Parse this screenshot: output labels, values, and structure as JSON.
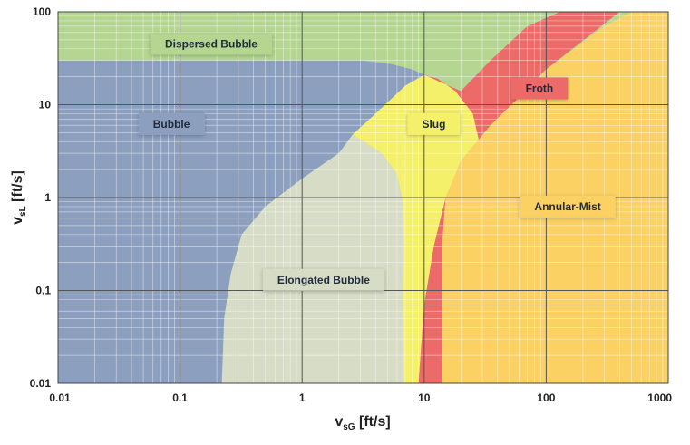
{
  "chart_data": {
    "type": "area",
    "xscale": "log",
    "yscale": "log",
    "xlim": [
      0.01,
      1000
    ],
    "ylim": [
      0.01,
      100
    ],
    "xticks": [
      "0.01",
      "0.1",
      "1",
      "10",
      "100",
      "1000"
    ],
    "yticks": [
      "0.01",
      "0.1",
      "1",
      "10",
      "100"
    ],
    "xlabel": {
      "main": "v",
      "sub": "sG",
      "unit": " [ft/s]"
    },
    "ylabel": {
      "main": "v",
      "sub": "sL",
      "unit": " [ft/s]"
    },
    "grid": true,
    "regions": [
      {
        "name": "Dispersed Bubble",
        "color": "#b4d690",
        "label_at": [
          0.18,
          45
        ],
        "polygon": [
          [
            0.01,
            100
          ],
          [
            1000,
            100
          ],
          [
            1000,
            0.01
          ],
          [
            0.01,
            0.01
          ]
        ]
      },
      {
        "name": "Bubble",
        "color": "#8c9fbf",
        "label_at": [
          0.085,
          6.2
        ],
        "polygon": [
          [
            0.01,
            30
          ],
          [
            3,
            30
          ],
          [
            5,
            28
          ],
          [
            8,
            24
          ],
          [
            10,
            21
          ],
          [
            7,
            16
          ],
          [
            4,
            8
          ],
          [
            2,
            3
          ],
          [
            1,
            1.6
          ],
          [
            0.5,
            0.8
          ],
          [
            0.32,
            0.4
          ],
          [
            0.26,
            0.15
          ],
          [
            0.23,
            0.05
          ],
          [
            0.22,
            0.01
          ],
          [
            0.01,
            0.01
          ]
        ]
      },
      {
        "name": "Elongated Bubble",
        "color": "#d6dcc6",
        "label_at": [
          1.5,
          0.13
        ],
        "polygon": [
          [
            2.6,
            4.8
          ],
          [
            4.5,
            3
          ],
          [
            6,
            1.8
          ],
          [
            6.7,
            0.9
          ],
          [
            6.8,
            0.3
          ],
          [
            6.7,
            0.1
          ],
          [
            6.8,
            0.01
          ],
          [
            0.22,
            0.01
          ],
          [
            0.23,
            0.05
          ],
          [
            0.26,
            0.15
          ],
          [
            0.32,
            0.4
          ],
          [
            0.5,
            0.8
          ],
          [
            1,
            1.6
          ],
          [
            2,
            3
          ]
        ]
      },
      {
        "name": "Slug",
        "color": "#f5f06a",
        "label_at": [
          12,
          6.2
        ],
        "polygon": [
          [
            2.6,
            4.8
          ],
          [
            4,
            8
          ],
          [
            7,
            16
          ],
          [
            10,
            21
          ],
          [
            13,
            19
          ],
          [
            18,
            14
          ],
          [
            25,
            8
          ],
          [
            28,
            4.2
          ],
          [
            20,
            2.5
          ],
          [
            15,
            1
          ],
          [
            12,
            0.3
          ],
          [
            10,
            0.07
          ],
          [
            9,
            0.01
          ],
          [
            6.8,
            0.01
          ],
          [
            6.7,
            0.1
          ],
          [
            6.8,
            0.3
          ],
          [
            6.7,
            0.9
          ],
          [
            6,
            1.8
          ],
          [
            4.5,
            3
          ]
        ]
      },
      {
        "name": "Froth",
        "color": "#ec6a68",
        "label_at": [
          88,
          15
        ],
        "polygon": [
          [
            10,
            21
          ],
          [
            20,
            14
          ],
          [
            35,
            30
          ],
          [
            70,
            70
          ],
          [
            130,
            100
          ],
          [
            400,
            100
          ],
          [
            100,
            24
          ],
          [
            60,
            12
          ],
          [
            35,
            6
          ],
          [
            28,
            4.2
          ],
          [
            20,
            2.5
          ],
          [
            15,
            1
          ],
          [
            14,
            0.3
          ],
          [
            14,
            0.01
          ],
          [
            9,
            0.01
          ],
          [
            10,
            0.07
          ],
          [
            12,
            0.3
          ],
          [
            15,
            1
          ],
          [
            20,
            2.5
          ],
          [
            28,
            4.2
          ],
          [
            25,
            8
          ],
          [
            18,
            14
          ],
          [
            13,
            19
          ]
        ]
      },
      {
        "name": "Annular-Mist",
        "color": "#fbd164",
        "label_at": [
          150,
          0.8
        ],
        "polygon": [
          [
            28,
            4.2
          ],
          [
            35,
            6
          ],
          [
            60,
            12
          ],
          [
            100,
            24
          ],
          [
            300,
            70
          ],
          [
            500,
            100
          ],
          [
            1000,
            100
          ],
          [
            1000,
            0.01
          ],
          [
            14,
            0.01
          ],
          [
            14,
            0.3
          ],
          [
            15,
            1
          ],
          [
            20,
            2.5
          ]
        ]
      }
    ]
  }
}
